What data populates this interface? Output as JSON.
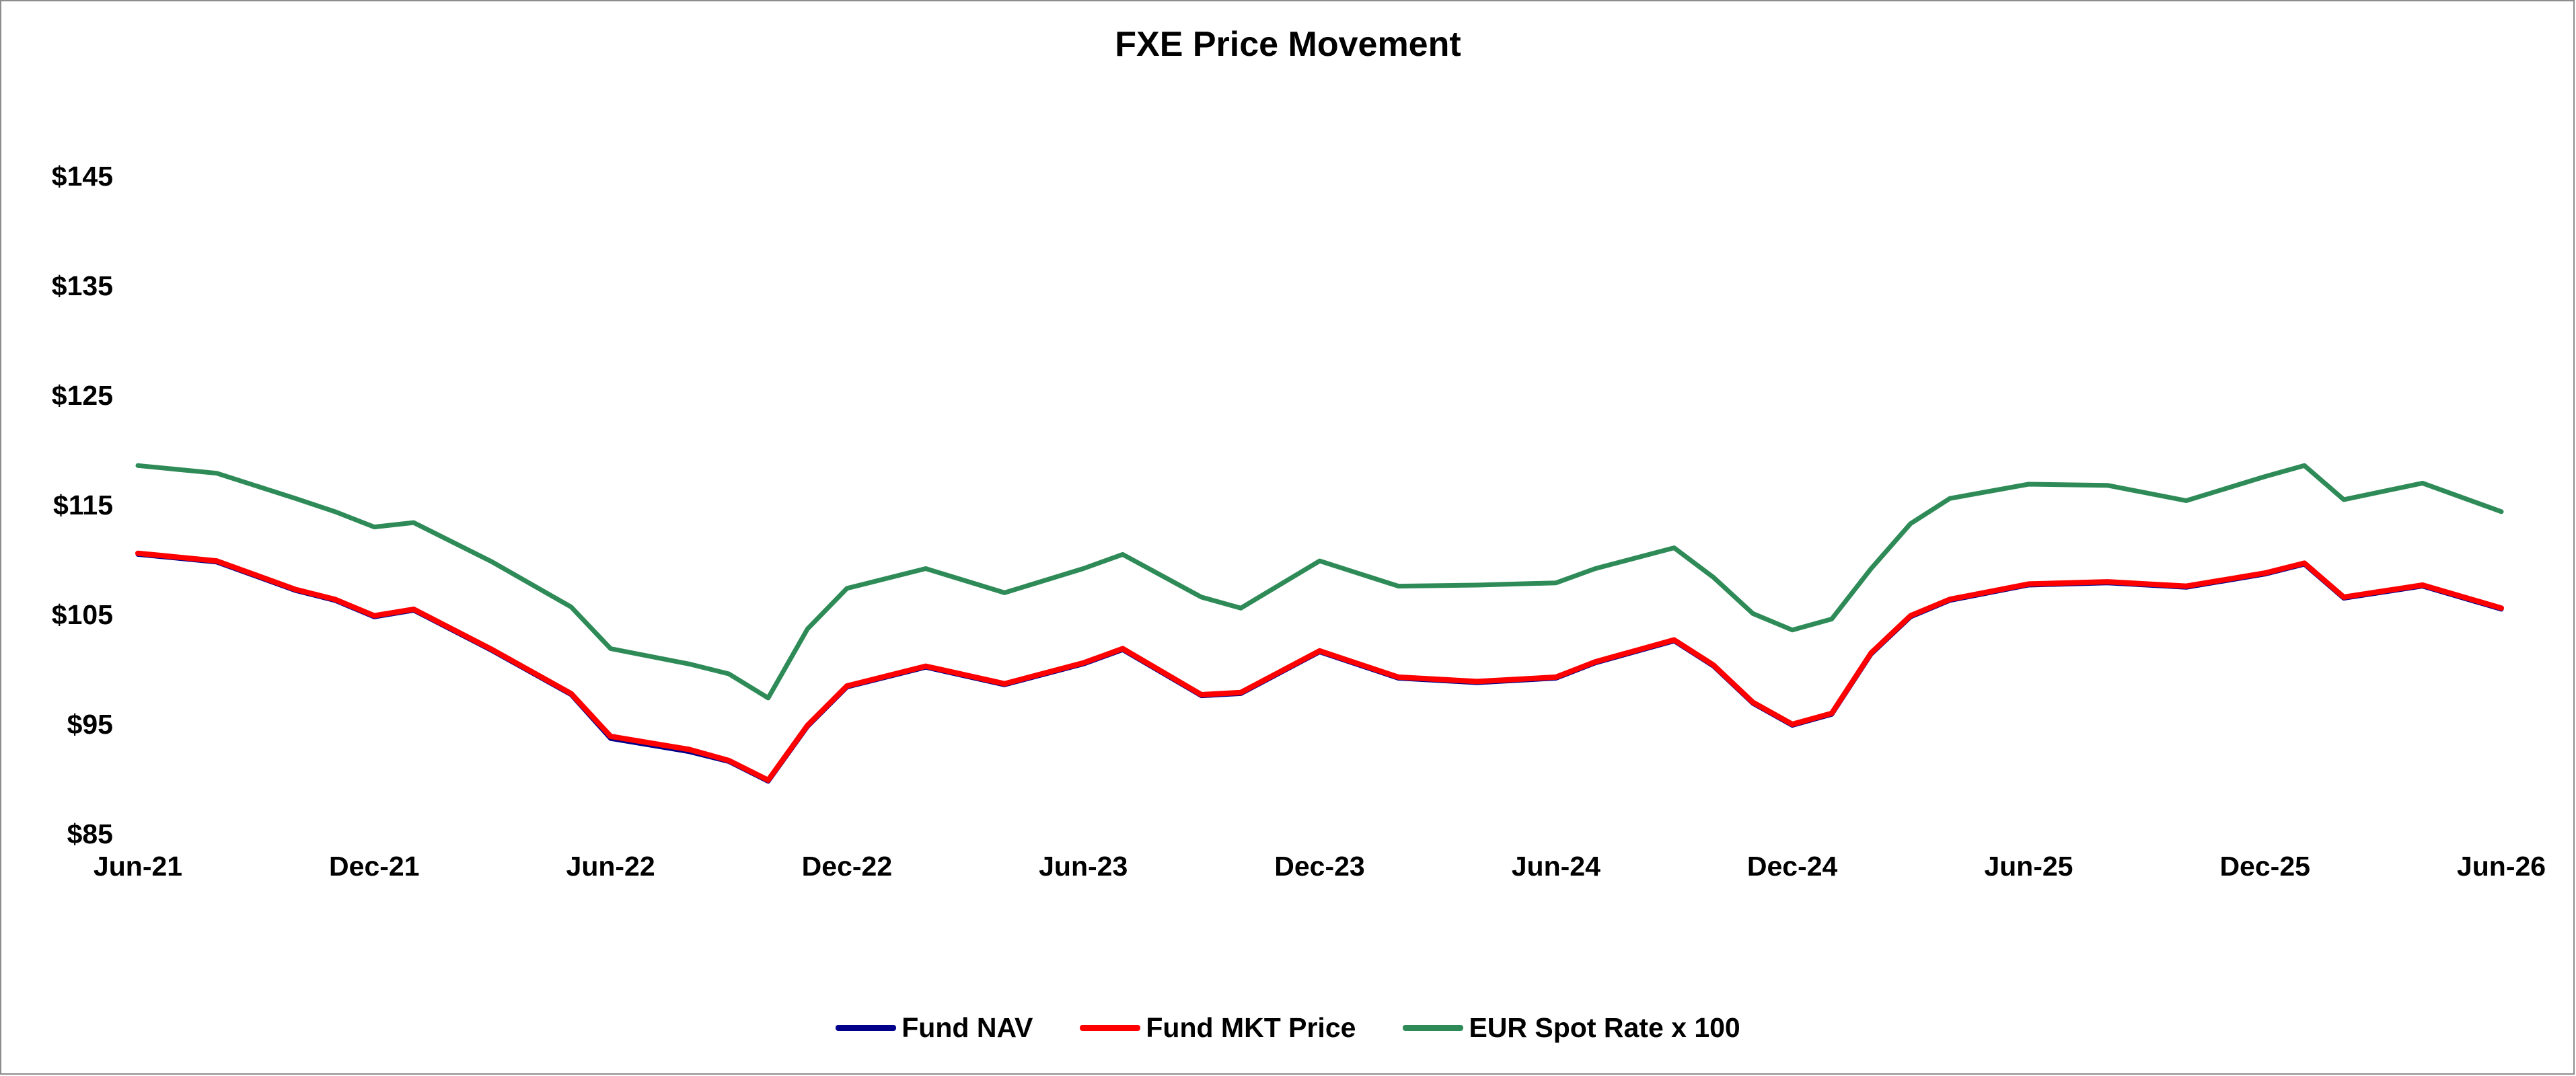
{
  "chart_data": {
    "type": "line",
    "title": "FXE Price Movement",
    "xlabel": "",
    "ylabel": "",
    "x_ticks": [
      "Jun-21",
      "Dec-21",
      "Jun-22",
      "Dec-22",
      "Jun-23",
      "Dec-23",
      "Jun-24",
      "Dec-24",
      "Jun-25",
      "Dec-25",
      "Jun-26"
    ],
    "y_ticks": [
      "$85",
      "$95",
      "$105",
      "$115",
      "$125",
      "$135",
      "$145"
    ],
    "ylim": [
      85,
      145
    ],
    "xlim": [
      "Jun-21",
      "Jun-26"
    ],
    "grid": false,
    "legend_position": "bottom",
    "x": [
      "Jun-21",
      "Aug-21",
      "Oct-21",
      "Nov-21",
      "Dec-21",
      "Jan-22",
      "Mar-22",
      "May-22",
      "Jun-22",
      "Aug-22",
      "Sep-22",
      "Oct-22",
      "Nov-22",
      "Dec-22",
      "Feb-23",
      "Apr-23",
      "Jun-23",
      "Jul-23",
      "Sep-23",
      "Oct-23",
      "Dec-23",
      "Feb-24",
      "Apr-24",
      "Jun-24",
      "Jul-24",
      "Sep-24",
      "Oct-24",
      "Nov-24",
      "Dec-24",
      "Jan-25",
      "Feb-25",
      "Mar-25",
      "Apr-25",
      "Jun-25",
      "Aug-25",
      "Oct-25",
      "Dec-25",
      "Jan-26",
      "Feb-26",
      "Apr-26",
      "Jun-26"
    ],
    "series": [
      {
        "name": "Fund NAV",
        "color": "#00008b",
        "values": [
          110.5,
          109.8,
          107.2,
          106.3,
          104.8,
          105.4,
          101.7,
          97.7,
          93.7,
          92.5,
          91.6,
          89.8,
          94.8,
          98.4,
          100.2,
          98.6,
          100.5,
          101.8,
          97.6,
          97.8,
          101.6,
          99.2,
          98.8,
          99.2,
          100.6,
          102.6,
          100.3,
          96.9,
          94.9,
          95.9,
          101.4,
          104.8,
          106.3,
          107.7,
          107.9,
          107.5,
          108.7,
          109.6,
          106.5,
          107.6,
          105.5
        ]
      },
      {
        "name": "Fund MKT Price",
        "color": "#ff0000",
        "values": [
          110.6,
          109.9,
          107.3,
          106.4,
          104.9,
          105.5,
          101.8,
          97.8,
          93.9,
          92.7,
          91.7,
          89.9,
          94.9,
          98.5,
          100.3,
          98.7,
          100.6,
          101.9,
          97.7,
          97.9,
          101.7,
          99.3,
          98.9,
          99.3,
          100.7,
          102.7,
          100.4,
          97.0,
          95.0,
          96.0,
          101.5,
          104.9,
          106.4,
          107.8,
          108.0,
          107.6,
          108.8,
          109.7,
          106.6,
          107.7,
          105.6
        ]
      },
      {
        "name": "EUR Spot Rate x 100",
        "color": "#2e8b57",
        "values": [
          118.6,
          117.9,
          115.6,
          114.4,
          113.0,
          113.4,
          109.8,
          105.7,
          101.9,
          100.5,
          99.6,
          97.4,
          103.7,
          107.4,
          109.2,
          107.0,
          109.2,
          110.5,
          106.6,
          105.6,
          109.9,
          107.6,
          107.7,
          107.9,
          109.2,
          111.1,
          108.4,
          105.1,
          103.6,
          104.6,
          109.2,
          113.3,
          115.6,
          116.9,
          116.8,
          115.4,
          117.6,
          118.6,
          115.5,
          117.0,
          114.4
        ]
      }
    ]
  }
}
